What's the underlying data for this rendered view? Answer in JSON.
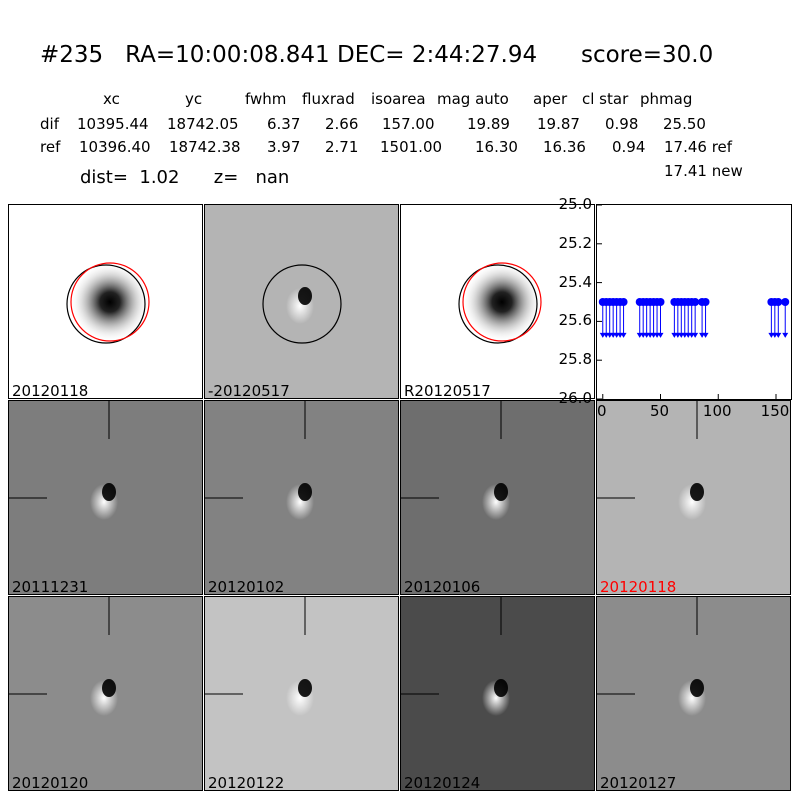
{
  "title": "#235   RA=10:00:08.841 DEC= 2:44:27.94      score=30.0",
  "table": {
    "headers": [
      "xc",
      "yc",
      "fwhm",
      "fluxrad",
      "isoarea",
      "mag auto",
      "aper",
      "cl star",
      "phmag"
    ],
    "rows": [
      {
        "label": "dif",
        "values": [
          "10395.44",
          "18742.05",
          "6.37",
          "2.66",
          "157.00",
          "19.89",
          "19.87",
          "0.98",
          "25.50"
        ],
        "suffix": ""
      },
      {
        "label": "ref",
        "values": [
          "10396.40",
          "18742.38",
          "3.97",
          "2.71",
          "1501.00",
          "16.30",
          "16.36",
          "0.94",
          "17.46"
        ],
        "suffix": "ref"
      }
    ],
    "new_phmag": "17.41",
    "new_label": "new"
  },
  "dist_line": "dist=  1.02      z=   nan",
  "top_panels": [
    {
      "label": "20120118",
      "bg": "#ffffff",
      "circles": true
    },
    {
      "label": "-20120517",
      "bg": "#b4b4b4",
      "circles": true
    },
    {
      "label": "R20120517",
      "bg": "#ffffff",
      "circles": true
    }
  ],
  "grid_panels": [
    {
      "label": "20111231",
      "bg": "#7d7d7d",
      "highlight": false
    },
    {
      "label": "20120102",
      "bg": "#828282",
      "highlight": false
    },
    {
      "label": "20120106",
      "bg": "#6e6e6e",
      "highlight": false
    },
    {
      "label": "20120118",
      "bg": "#b4b4b4",
      "highlight": true
    },
    {
      "label": "20120120",
      "bg": "#8c8c8c",
      "highlight": false
    },
    {
      "label": "20120122",
      "bg": "#c3c3c3",
      "highlight": false
    },
    {
      "label": "20120124",
      "bg": "#4b4b4b",
      "highlight": false
    },
    {
      "label": "20120127",
      "bg": "#8c8c8c",
      "highlight": false
    }
  ],
  "chart_data": {
    "type": "scatter",
    "xlim": [
      -5,
      163
    ],
    "ylim": [
      26.0,
      25.0
    ],
    "x_ticks": [
      "0",
      "50",
      "100",
      "150"
    ],
    "y_ticks": [
      "25.0",
      "25.2",
      "25.4",
      "25.6",
      "25.8",
      "26.0"
    ],
    "y_value": 25.5,
    "arrow_to": 25.68,
    "x": [
      0,
      3,
      6,
      9,
      12,
      15,
      18,
      32,
      35,
      38,
      41,
      44,
      47,
      50,
      62,
      65,
      68,
      71,
      74,
      77,
      80,
      86,
      89,
      146,
      149,
      152,
      158
    ],
    "color": "#0000ff"
  }
}
